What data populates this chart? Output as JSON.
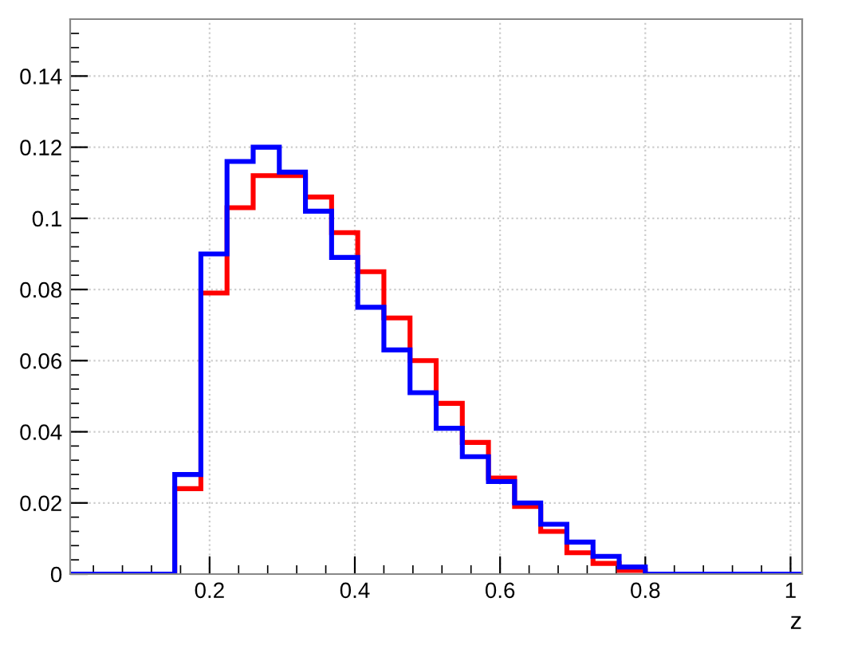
{
  "chart_data": {
    "type": "histogram",
    "xlabel": "z",
    "bins": [
      0.008,
      0.044,
      0.08,
      0.116,
      0.152,
      0.188,
      0.224,
      0.26,
      0.296,
      0.332,
      0.368,
      0.404,
      0.44,
      0.476,
      0.512,
      0.548,
      0.584,
      0.62,
      0.656,
      0.692,
      0.728,
      0.764,
      0.8,
      0.836,
      0.872,
      0.908,
      0.944,
      0.98,
      1.016
    ],
    "series": [
      {
        "color": "#ff0000",
        "values": [
          0,
          0,
          0,
          0,
          0.024,
          0.079,
          0.103,
          0.112,
          0.112,
          0.106,
          0.096,
          0.085,
          0.072,
          0.06,
          0.048,
          0.037,
          0.027,
          0.019,
          0.012,
          0.006,
          0.003,
          0.001,
          0,
          0,
          0,
          0,
          0,
          0
        ]
      },
      {
        "color": "#0000ff",
        "values": [
          0,
          0,
          0,
          0,
          0.028,
          0.09,
          0.116,
          0.12,
          0.113,
          0.102,
          0.089,
          0.075,
          0.063,
          0.051,
          0.041,
          0.033,
          0.026,
          0.02,
          0.014,
          0.009,
          0.005,
          0.002,
          0,
          0,
          0,
          0,
          0,
          0
        ]
      }
    ],
    "xlim": [
      0.008,
      1.016
    ],
    "ylim": [
      0,
      0.156
    ],
    "xticks": [
      0.2,
      0.4,
      0.6,
      0.8,
      1
    ],
    "yticks": [
      0,
      0.02,
      0.04,
      0.06,
      0.08,
      0.1,
      0.12,
      0.14
    ],
    "grid": true
  }
}
